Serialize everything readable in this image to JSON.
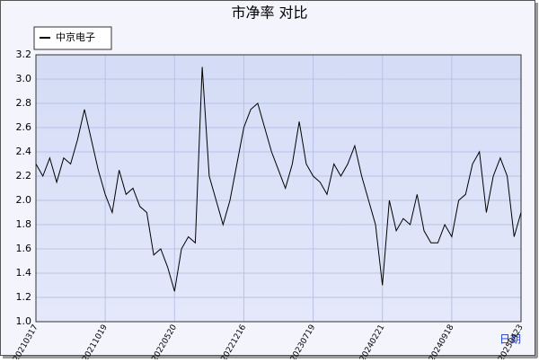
{
  "chart_data": {
    "type": "line",
    "title": "市净率  对比",
    "x_label": "日期",
    "categories": [
      "20210317",
      null,
      null,
      null,
      null,
      null,
      null,
      null,
      null,
      null,
      "20211019",
      null,
      null,
      null,
      null,
      null,
      null,
      null,
      null,
      null,
      "20220520",
      null,
      null,
      null,
      null,
      null,
      null,
      null,
      null,
      null,
      "20221216",
      null,
      null,
      null,
      null,
      null,
      null,
      null,
      null,
      null,
      "20230719",
      null,
      null,
      null,
      null,
      null,
      null,
      null,
      null,
      null,
      "20240221",
      null,
      null,
      null,
      null,
      null,
      null,
      null,
      null,
      null,
      "20240918",
      null,
      null,
      null,
      null,
      null,
      null,
      null,
      null,
      null,
      "20250423"
    ],
    "series": [
      {
        "name": "中京电子",
        "color": "#000000",
        "values": [
          2.3,
          2.2,
          2.35,
          2.15,
          2.35,
          2.3,
          2.5,
          2.75,
          2.5,
          2.25,
          2.05,
          1.9,
          2.25,
          2.05,
          2.1,
          1.95,
          1.9,
          1.55,
          1.6,
          1.45,
          1.25,
          1.6,
          1.7,
          1.65,
          3.1,
          2.2,
          2.0,
          1.8,
          2.0,
          2.3,
          2.6,
          2.75,
          2.8,
          2.6,
          2.4,
          2.25,
          2.1,
          2.3,
          2.65,
          2.3,
          2.2,
          2.15,
          2.05,
          2.3,
          2.2,
          2.3,
          2.45,
          2.2,
          2.0,
          1.8,
          1.3,
          2.0,
          1.75,
          1.85,
          1.8,
          2.05,
          1.75,
          1.65,
          1.65,
          1.8,
          1.7,
          2.0,
          2.05,
          2.3,
          2.4,
          1.9,
          2.2,
          2.35,
          2.2,
          1.7,
          1.9
        ]
      }
    ],
    "ylim": [
      1.0,
      3.2
    ],
    "yticks": [
      {
        "value": 1.0,
        "label": "1.0"
      },
      1.2,
      1.4,
      1.6,
      1.8,
      {
        "value": 2.0,
        "label": "2.0"
      },
      2.2,
      2.4,
      2.6,
      2.8,
      {
        "value": 3.0,
        "label": "3.0"
      },
      3.2
    ],
    "grid": true,
    "legend": "top-left"
  }
}
